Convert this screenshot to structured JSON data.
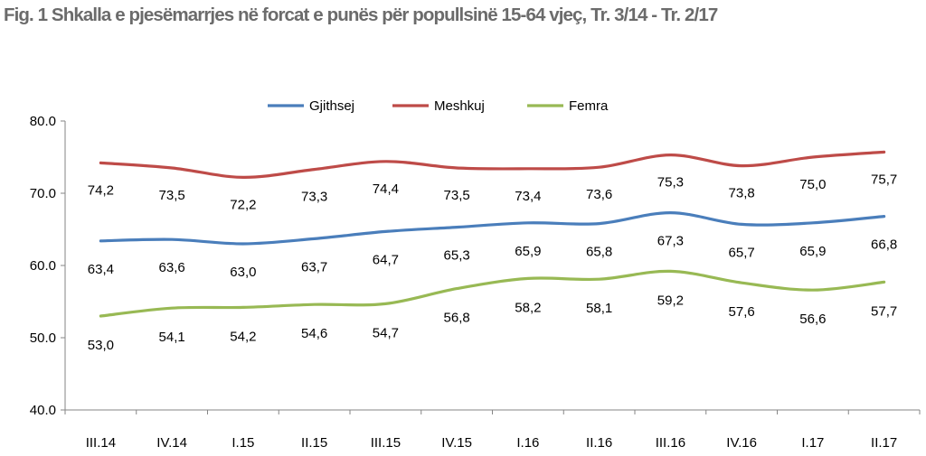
{
  "chart_data": {
    "type": "line",
    "title": "Fig. 1 Shkalla e pjesëmarrjes në forcat e punës për popullsinë 15-64 vjeç, Tr. 3/14 - Tr. 2/17",
    "categories": [
      "III.14",
      "IV.14",
      "I.15",
      "II.15",
      "III.15",
      "IV.15",
      "I.16",
      "II.16",
      "III.16",
      "IV.16",
      "I.17",
      "II.17"
    ],
    "yticks": [
      "40.0",
      "50.0",
      "60.0",
      "70.0",
      "80.0"
    ],
    "ylim": [
      40,
      80
    ],
    "legend_position": "top",
    "grid": false,
    "series": [
      {
        "name": "Gjithsej",
        "color": "#4a7ebb",
        "values": [
          63.4,
          63.6,
          63.0,
          63.7,
          64.7,
          65.3,
          65.9,
          65.8,
          67.3,
          65.7,
          65.9,
          66.8
        ],
        "labels": [
          "63,4",
          "63,6",
          "63,0",
          "63,7",
          "64,7",
          "65,3",
          "65,9",
          "65,8",
          "67,3",
          "65,7",
          "65,9",
          "66,8"
        ]
      },
      {
        "name": "Meshkuj",
        "color": "#be4b48",
        "values": [
          74.2,
          73.5,
          72.2,
          73.3,
          74.4,
          73.5,
          73.4,
          73.6,
          75.3,
          73.8,
          75.0,
          75.7
        ],
        "labels": [
          "74,2",
          "73,5",
          "72,2",
          "73,3",
          "74,4",
          "73,5",
          "73,4",
          "73,6",
          "75,3",
          "73,8",
          "75,0",
          "75,7"
        ]
      },
      {
        "name": "Femra",
        "color": "#98b954",
        "values": [
          53.0,
          54.1,
          54.2,
          54.6,
          54.7,
          56.8,
          58.2,
          58.1,
          59.2,
          57.6,
          56.6,
          57.7
        ],
        "labels": [
          "53,0",
          "54,1",
          "54,2",
          "54,6",
          "54,7",
          "56,8",
          "58,2",
          "58,1",
          "59,2",
          "57,6",
          "56,6",
          "57,7"
        ]
      }
    ]
  }
}
